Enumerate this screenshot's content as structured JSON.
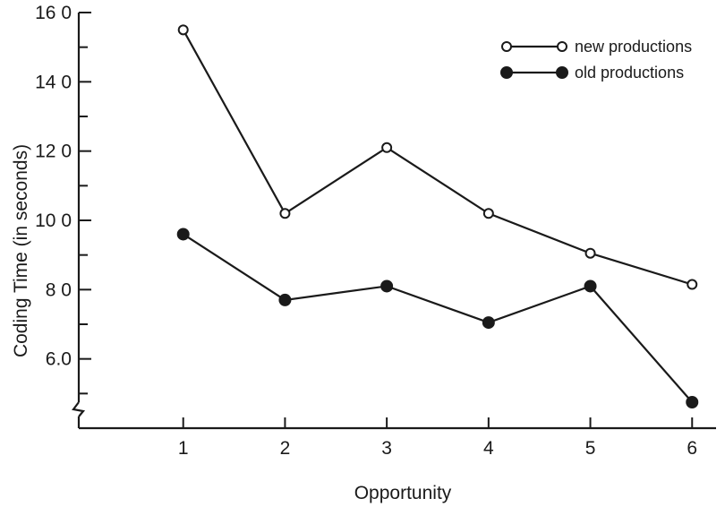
{
  "chart_data": {
    "type": "line",
    "title": "",
    "xlabel": "Opportunity",
    "ylabel": "Coding Time (in seconds)",
    "x": [
      1,
      2,
      3,
      4,
      5,
      6
    ],
    "x_tick_labels": [
      "1",
      "2",
      "3",
      "4",
      "5",
      "6"
    ],
    "xlim": [
      0,
      6.2
    ],
    "ylim": [
      4.0,
      16.0
    ],
    "y_axis_break": true,
    "y_ticks": [
      6,
      8,
      10,
      12,
      14,
      16
    ],
    "y_tick_labels": [
      "6.0",
      "8 0",
      "10 0",
      "12 0",
      "14 0",
      "16 0"
    ],
    "grid": false,
    "legend_position": "top-right",
    "series": [
      {
        "name": "new productions",
        "marker": "open-circle",
        "values": [
          15.5,
          10.2,
          12.1,
          10.2,
          9.05,
          8.15
        ]
      },
      {
        "name": "old productions",
        "marker": "filled-circle",
        "values": [
          9.6,
          7.7,
          8.1,
          7.05,
          8.1,
          4.75
        ]
      }
    ],
    "colors": {
      "line": "#1a1a1a",
      "background": "#ffffff"
    }
  }
}
